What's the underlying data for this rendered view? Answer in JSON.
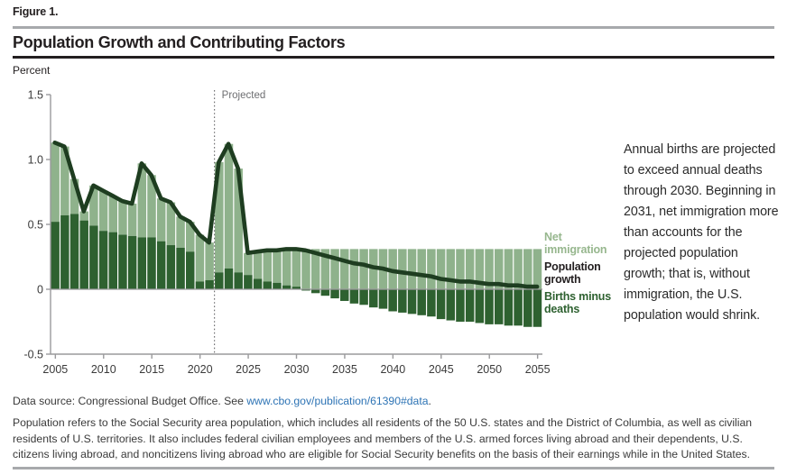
{
  "header": {
    "figure_label": "Figure 1.",
    "title": "Population Growth and Contributing Factors"
  },
  "chart": {
    "unit_label": "Percent",
    "projected_label": "Projected"
  },
  "legend": {
    "net_immigration": "Net immigration",
    "population_growth": "Population growth",
    "births_minus_deaths": "Births minus deaths"
  },
  "annotation": {
    "text": "Annual births are projected to exceed annual deaths through 2030. Beginning in 2031, net immigration more than accounts for the projected population growth; that is, without immigration, the U.S. population would shrink."
  },
  "footer": {
    "source_prefix": "Data source: Congressional Budget Office. See ",
    "source_link": "www.cbo.gov/publication/61390#data",
    "source_suffix": ".",
    "note": "Population refers to the Social Security area population, which includes all residents of the 50 U.S. states and the District of Columbia, as well as civilian residents of U.S. territories. It also includes federal civilian employees and members of the U.S. armed forces living abroad and their dependents, U.S. citizens living abroad, and noncitizens living abroad who are eligible for Social Security benefits on the basis of their earnings while in the United States."
  },
  "colors": {
    "bar_light_green": "#8fb28c",
    "bar_dark_green": "#2e6130",
    "growth_line": "#1e3d20",
    "legend_net_immigration": "#97b78e",
    "legend_population_growth": "#231f20",
    "legend_births_minus_deaths": "#2e6130",
    "axis_gray": "#9a9a9c",
    "tick_label": "#3a3a3a",
    "projected_gray": "#6d6e71",
    "link_blue": "#2e74b5",
    "rule_gray": "#a7a9ac",
    "rule_black": "#231f20"
  },
  "chart_data": {
    "type": "bar",
    "subtype": "stacked bars (births minus deaths + net immigration) with population growth line overlay",
    "title": "Population Growth and Contributing Factors",
    "ylabel": "Percent",
    "ylim": [
      -0.5,
      1.5
    ],
    "yticks": [
      {
        "value": 1.5,
        "label": "1.5"
      },
      {
        "value": 1.0,
        "label": "1.0"
      },
      {
        "value": 0.5,
        "label": "0.5"
      },
      {
        "value": 0,
        "label": "0"
      },
      {
        "value": -0.5,
        "label": "-0.5"
      }
    ],
    "xticks": [
      2005,
      2010,
      2015,
      2020,
      2025,
      2030,
      2035,
      2040,
      2045,
      2050,
      2055
    ],
    "projection_start_year": 2022,
    "projected_label": "Projected",
    "legend_position": "right",
    "grid": false,
    "years": [
      2005,
      2006,
      2007,
      2008,
      2009,
      2010,
      2011,
      2012,
      2013,
      2014,
      2015,
      2016,
      2017,
      2018,
      2019,
      2020,
      2021,
      2022,
      2023,
      2024,
      2025,
      2026,
      2027,
      2028,
      2029,
      2030,
      2031,
      2032,
      2033,
      2034,
      2035,
      2036,
      2037,
      2038,
      2039,
      2040,
      2041,
      2042,
      2043,
      2044,
      2045,
      2046,
      2047,
      2048,
      2049,
      2050,
      2051,
      2052,
      2053,
      2054,
      2055
    ],
    "series": [
      {
        "name": "Births minus deaths",
        "type": "bar",
        "color": "#2e6130",
        "values": [
          0.52,
          0.57,
          0.58,
          0.53,
          0.49,
          0.45,
          0.44,
          0.42,
          0.41,
          0.4,
          0.4,
          0.37,
          0.34,
          0.32,
          0.29,
          0.06,
          0.07,
          0.13,
          0.16,
          0.13,
          0.11,
          0.08,
          0.06,
          0.05,
          0.03,
          0.02,
          -0.01,
          -0.03,
          -0.05,
          -0.07,
          -0.09,
          -0.11,
          -0.12,
          -0.14,
          -0.15,
          -0.17,
          -0.18,
          -0.19,
          -0.2,
          -0.21,
          -0.23,
          -0.24,
          -0.25,
          -0.25,
          -0.26,
          -0.27,
          -0.27,
          -0.28,
          -0.28,
          -0.29,
          -0.29
        ]
      },
      {
        "name": "Net immigration",
        "type": "bar",
        "color": "#8fb28c",
        "values": [
          0.61,
          0.53,
          0.27,
          0.07,
          0.31,
          0.31,
          0.28,
          0.26,
          0.25,
          0.57,
          0.48,
          0.33,
          0.33,
          0.24,
          0.23,
          0.36,
          0.29,
          0.85,
          0.96,
          0.8,
          0.17,
          0.21,
          0.24,
          0.25,
          0.28,
          0.29,
          0.31,
          0.31,
          0.31,
          0.31,
          0.31,
          0.31,
          0.31,
          0.31,
          0.31,
          0.31,
          0.31,
          0.31,
          0.31,
          0.31,
          0.31,
          0.31,
          0.31,
          0.31,
          0.31,
          0.31,
          0.31,
          0.31,
          0.31,
          0.31,
          0.31
        ]
      },
      {
        "name": "Population growth",
        "type": "line",
        "color": "#1e3d20",
        "values": [
          1.13,
          1.1,
          0.85,
          0.6,
          0.8,
          0.76,
          0.72,
          0.68,
          0.66,
          0.97,
          0.88,
          0.7,
          0.67,
          0.56,
          0.52,
          0.42,
          0.36,
          0.98,
          1.12,
          0.93,
          0.28,
          0.29,
          0.3,
          0.3,
          0.31,
          0.31,
          0.3,
          0.28,
          0.26,
          0.24,
          0.22,
          0.2,
          0.19,
          0.17,
          0.16,
          0.14,
          0.13,
          0.12,
          0.11,
          0.1,
          0.08,
          0.07,
          0.06,
          0.06,
          0.05,
          0.04,
          0.04,
          0.03,
          0.03,
          0.02,
          0.02
        ]
      }
    ]
  }
}
